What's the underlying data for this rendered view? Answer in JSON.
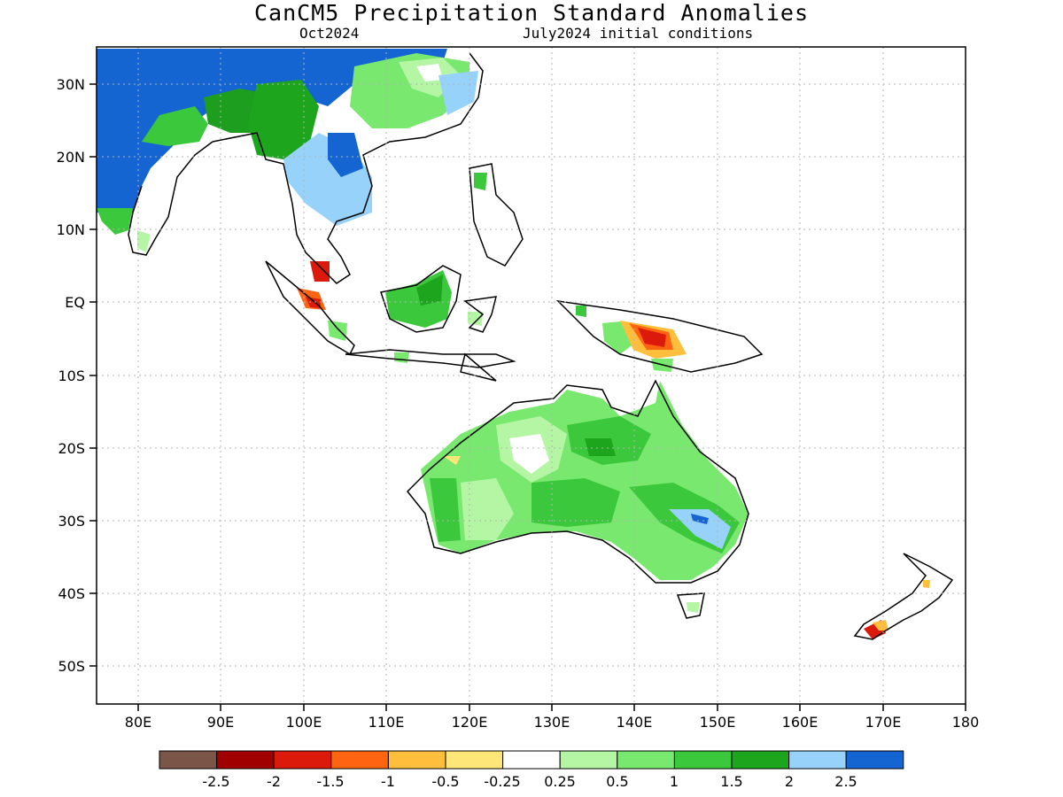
{
  "title": "CanCM5 Precipitation Standard Anomalies",
  "subtitle_left": "Oct2024",
  "subtitle_right": "July2024 initial conditions",
  "lat_labels": [
    "30N",
    "20N",
    "10N",
    "EQ",
    "10S",
    "20S",
    "30S",
    "40S",
    "50S"
  ],
  "lon_labels": [
    "80E",
    "90E",
    "100E",
    "110E",
    "120E",
    "130E",
    "140E",
    "150E",
    "160E",
    "170E",
    "180"
  ],
  "colorbar": {
    "colors": [
      "#7a5548",
      "#a00000",
      "#dc1a0c",
      "#ff6410",
      "#ffbe3c",
      "#ffe679",
      "#ffffff",
      "#b4f6a4",
      "#78e86e",
      "#3cc83c",
      "#1ea51e",
      "#96d2fa",
      "#1464d2"
    ],
    "labels": [
      "-2.5",
      "-2",
      "-1.5",
      "-1",
      "-0.5",
      "-0.25",
      "0.25",
      "0.5",
      "1",
      "1.5",
      "2",
      "2.5"
    ]
  }
}
